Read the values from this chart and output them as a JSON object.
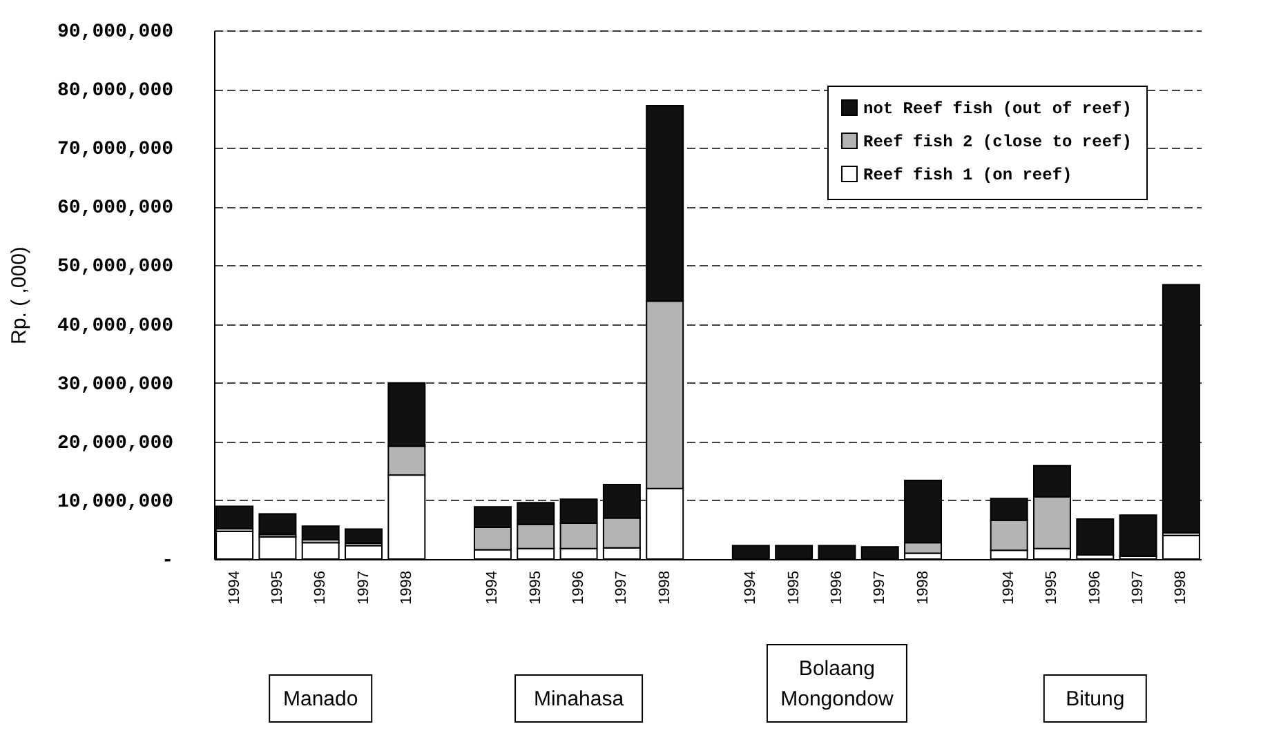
{
  "chart_data": {
    "type": "bar",
    "stacked": true,
    "ylabel": "Rp. ( ,000)",
    "categories": [
      "1994",
      "1995",
      "1996",
      "1997",
      "1998",
      null,
      "1994",
      "1995",
      "1996",
      "1997",
      "1998",
      null,
      "1994",
      "1995",
      "1996",
      "1997",
      "1998",
      null,
      "1994",
      "1995",
      "1996",
      "1997",
      "1998"
    ],
    "series": [
      {
        "name": "Reef fish 1 (on reef)",
        "color": "#ffffff",
        "values": [
          4700000,
          3800000,
          2800000,
          2300000,
          14300000,
          null,
          1600000,
          1800000,
          1800000,
          1900000,
          12000000,
          null,
          0,
          0,
          0,
          0,
          1000000,
          null,
          1500000,
          1800000,
          700000,
          500000,
          4000000
        ]
      },
      {
        "name": "Reef fish 2 (close to reef)",
        "color": "#b4b4b4",
        "values": [
          500000,
          400000,
          500000,
          400000,
          4900000,
          null,
          3800000,
          4100000,
          4300000,
          5100000,
          31900000,
          null,
          0,
          0,
          0,
          0,
          1800000,
          null,
          5100000,
          8800000,
          0,
          0,
          500000
        ]
      },
      {
        "name": "not Reef fish (out of reef)",
        "color": "#111111",
        "values": [
          3800000,
          3500000,
          2300000,
          2400000,
          10800000,
          null,
          3500000,
          3700000,
          4100000,
          5700000,
          33300000,
          null,
          2300000,
          2300000,
          2300000,
          2100000,
          10600000,
          null,
          3700000,
          5300000,
          6100000,
          7000000,
          42200000
        ]
      }
    ],
    "ylim": [
      0,
      90000000
    ],
    "yticks": [
      {
        "value": 0,
        "label": "-"
      },
      {
        "value": 10000000,
        "label": "10,000,000"
      },
      {
        "value": 20000000,
        "label": "20,000,000"
      },
      {
        "value": 30000000,
        "label": "30,000,000"
      },
      {
        "value": 40000000,
        "label": "40,000,000"
      },
      {
        "value": 50000000,
        "label": "50,000,000"
      },
      {
        "value": 60000000,
        "label": "60,000,000"
      },
      {
        "value": 70000000,
        "label": "70,000,000"
      },
      {
        "value": 80000000,
        "label": "80,000,000"
      },
      {
        "value": 90000000,
        "label": "90,000,000"
      }
    ],
    "grid": "y",
    "legend": "top right",
    "annotations": [
      "Manado",
      "Minahasa",
      "Bolaang Mongondow",
      "Bitung"
    ]
  }
}
